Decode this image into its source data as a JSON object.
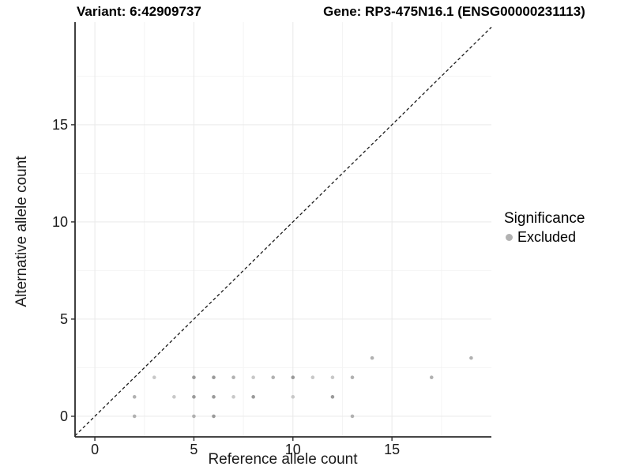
{
  "titles": {
    "left": "Variant: 6:42909737",
    "right": "Gene: RP3-475N16.1 (ENSG00000231113)"
  },
  "chart_data": {
    "type": "scatter",
    "xlabel": "Reference allele count",
    "ylabel": "Alternative allele count",
    "xlim": [
      -1,
      20.02
    ],
    "ylim": [
      -1.06,
      20.28
    ],
    "x_breaks": [
      0,
      5,
      10,
      15
    ],
    "y_breaks": [
      0,
      5,
      10,
      15
    ],
    "x_minor_breaks": [
      2.5,
      7.5,
      12.5,
      17.5
    ],
    "y_minor_breaks": [
      2.5,
      7.5,
      12.5,
      17.5
    ],
    "grid": "major+minor",
    "reference_line": {
      "equation": "y = x",
      "style": "dashed",
      "color": "#1a1a1a"
    },
    "legend": {
      "title": "Significance",
      "position": "right",
      "items": [
        {
          "label": "Excluded",
          "color": "#b2b2b2"
        }
      ]
    },
    "shade_colors": {
      "light": "#c8c8c8",
      "medium": "#b1b1b1",
      "dark": "#9a9a9a"
    },
    "series": [
      {
        "name": "Excluded",
        "points": [
          {
            "x": 2,
            "y": 0,
            "shade": "medium"
          },
          {
            "x": 5,
            "y": 0,
            "shade": "medium"
          },
          {
            "x": 6,
            "y": 0,
            "shade": "dark"
          },
          {
            "x": 13,
            "y": 0,
            "shade": "medium"
          },
          {
            "x": 2,
            "y": 1,
            "shade": "medium"
          },
          {
            "x": 4,
            "y": 1,
            "shade": "light"
          },
          {
            "x": 5,
            "y": 1,
            "shade": "dark"
          },
          {
            "x": 6,
            "y": 1,
            "shade": "dark"
          },
          {
            "x": 7,
            "y": 1,
            "shade": "light"
          },
          {
            "x": 8,
            "y": 1,
            "shade": "dark"
          },
          {
            "x": 10,
            "y": 1,
            "shade": "light"
          },
          {
            "x": 12,
            "y": 1,
            "shade": "dark"
          },
          {
            "x": 3,
            "y": 2,
            "shade": "light"
          },
          {
            "x": 5,
            "y": 2,
            "shade": "dark"
          },
          {
            "x": 6,
            "y": 2,
            "shade": "dark"
          },
          {
            "x": 7,
            "y": 2,
            "shade": "medium"
          },
          {
            "x": 8,
            "y": 2,
            "shade": "light"
          },
          {
            "x": 9,
            "y": 2,
            "shade": "medium"
          },
          {
            "x": 10,
            "y": 2,
            "shade": "dark"
          },
          {
            "x": 11,
            "y": 2,
            "shade": "light"
          },
          {
            "x": 12,
            "y": 2,
            "shade": "light"
          },
          {
            "x": 13,
            "y": 2,
            "shade": "medium"
          },
          {
            "x": 17,
            "y": 2,
            "shade": "medium"
          },
          {
            "x": 14,
            "y": 3,
            "shade": "medium"
          },
          {
            "x": 19,
            "y": 3,
            "shade": "medium"
          }
        ]
      }
    ],
    "colors": {
      "axis_line": "#2b2b2b",
      "tick_text": "#1a1a1a",
      "grid_major": "#e9e9e9",
      "grid_minor": "#f4f4f4",
      "background": "#ffffff"
    }
  }
}
